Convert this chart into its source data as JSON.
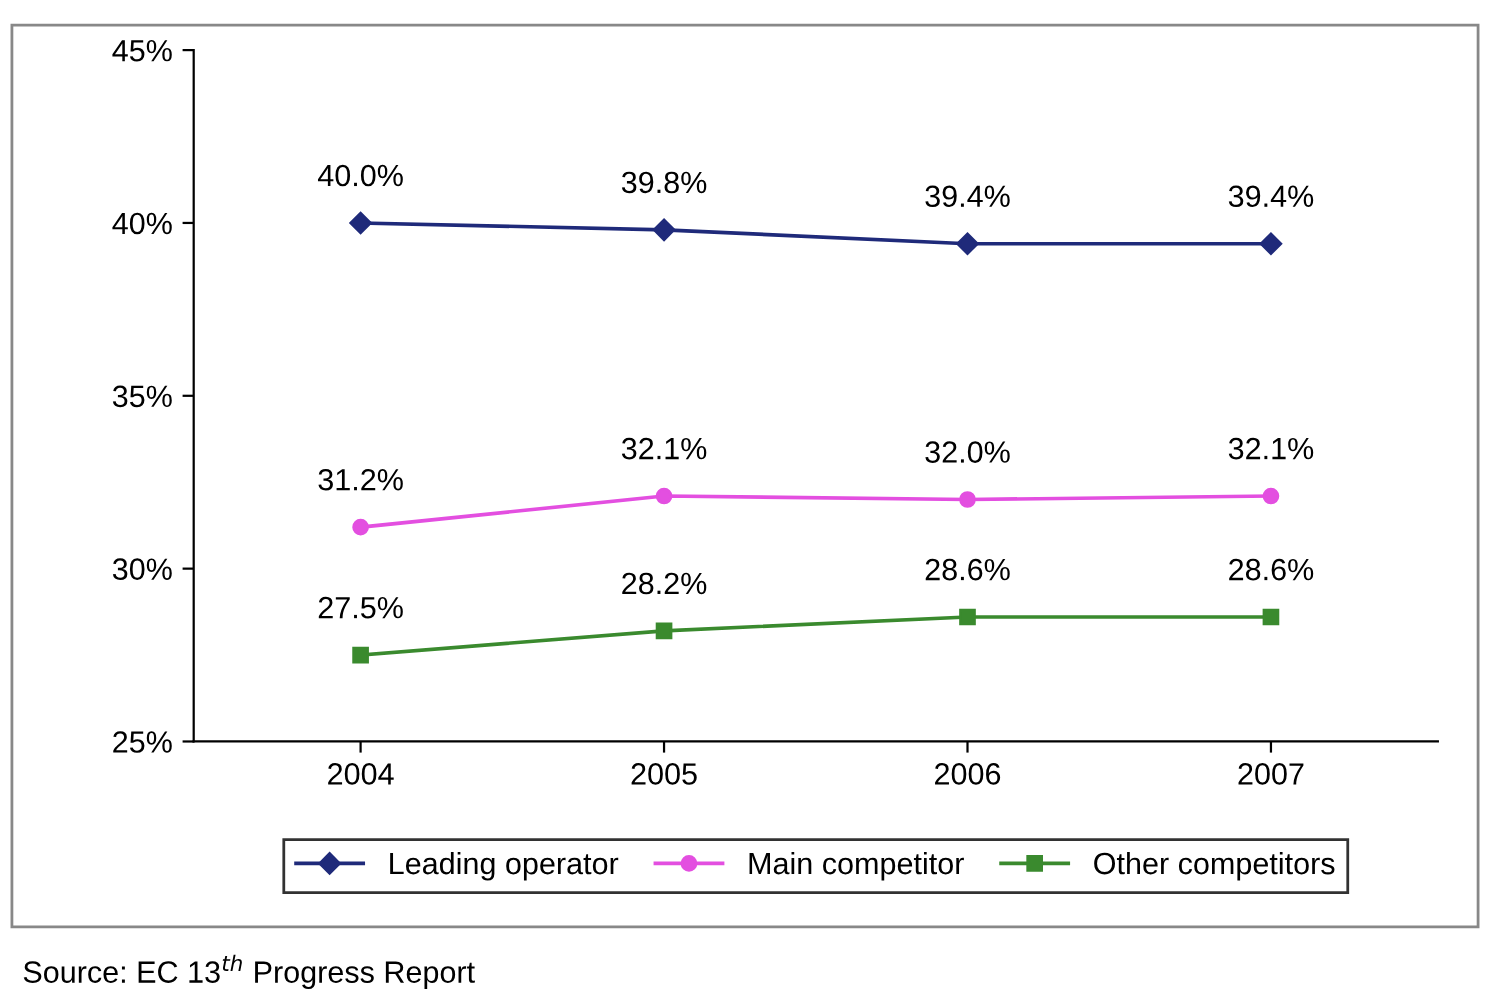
{
  "chart_data": {
    "type": "line",
    "categories": [
      "2004",
      "2005",
      "2006",
      "2007"
    ],
    "series": [
      {
        "name": "Leading operator",
        "color": "#1f2a7a",
        "marker": "diamond",
        "values": [
          40.0,
          39.8,
          39.4,
          39.4
        ],
        "value_labels": [
          "40.0%",
          "39.8%",
          "39.4%",
          "39.4%"
        ]
      },
      {
        "name": "Main competitor",
        "color": "#e34fe0",
        "marker": "circle",
        "values": [
          31.2,
          32.1,
          32.0,
          32.1
        ],
        "value_labels": [
          "31.2%",
          "32.1%",
          "32.0%",
          "32.1%"
        ]
      },
      {
        "name": "Other competitors",
        "color": "#3a8a2e",
        "marker": "square",
        "values": [
          27.5,
          28.2,
          28.6,
          28.6
        ],
        "value_labels": [
          "27.5%",
          "28.2%",
          "28.6%",
          "28.6%"
        ]
      }
    ],
    "ylim": [
      25,
      45
    ],
    "yticks": [
      {
        "value": 25,
        "label": "25%"
      },
      {
        "value": 30,
        "label": "30%"
      },
      {
        "value": 35,
        "label": "35%"
      },
      {
        "value": 40,
        "label": "40%"
      },
      {
        "value": 45,
        "label": "45%"
      }
    ],
    "legend": "bottom",
    "grid": false,
    "annotations": [
      "Source: EC 13$^{th}$ Progress Report"
    ]
  }
}
